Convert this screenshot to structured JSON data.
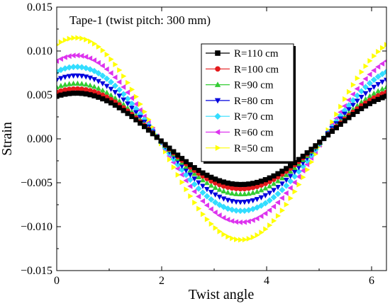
{
  "chart_data": {
    "type": "scatter",
    "title": "",
    "annotation": "Tape-1 (twist pitch: 300 mm)",
    "xlabel": "Twist angle",
    "ylabel": "Strain",
    "xlim": [
      0,
      6.2832
    ],
    "ylim": [
      -0.015,
      0.015
    ],
    "x_ticks": [
      0,
      2,
      4,
      6
    ],
    "y_ticks": [
      -0.015,
      -0.01,
      -0.005,
      0.0,
      0.005,
      0.01,
      0.015
    ],
    "x_tick_labels": [
      "0",
      "2",
      "4",
      "6"
    ],
    "y_tick_labels": [
      "−0.015",
      "−0.010",
      "−0.005",
      "0.000",
      "0.005",
      "0.010",
      "0.015"
    ],
    "grid": false,
    "legend_position": "upper-center",
    "curve_model": {
      "form": "amplitude * sin(x + phase)",
      "phase": 1.2,
      "x_start": 0,
      "x_end": 6.2832,
      "points_per_series": 80
    },
    "series": [
      {
        "name": "R=110 cm",
        "amplitude": 0.0052,
        "color": "#000000",
        "marker": "square"
      },
      {
        "name": "R=100 cm",
        "amplitude": 0.0057,
        "color": "#e41a1c",
        "marker": "circle"
      },
      {
        "name": "R=90 cm",
        "amplitude": 0.0063,
        "color": "#33cc33",
        "marker": "triangle-up"
      },
      {
        "name": "R=80 cm",
        "amplitude": 0.0072,
        "color": "#0000dd",
        "marker": "triangle-down"
      },
      {
        "name": "R=70 cm",
        "amplitude": 0.0082,
        "color": "#33ddff",
        "marker": "diamond"
      },
      {
        "name": "R=60 cm",
        "amplitude": 0.0095,
        "color": "#dd33ee",
        "marker": "triangle-left"
      },
      {
        "name": "R=50 cm",
        "amplitude": 0.0115,
        "color": "#ffff00",
        "marker": "triangle-right"
      }
    ]
  }
}
